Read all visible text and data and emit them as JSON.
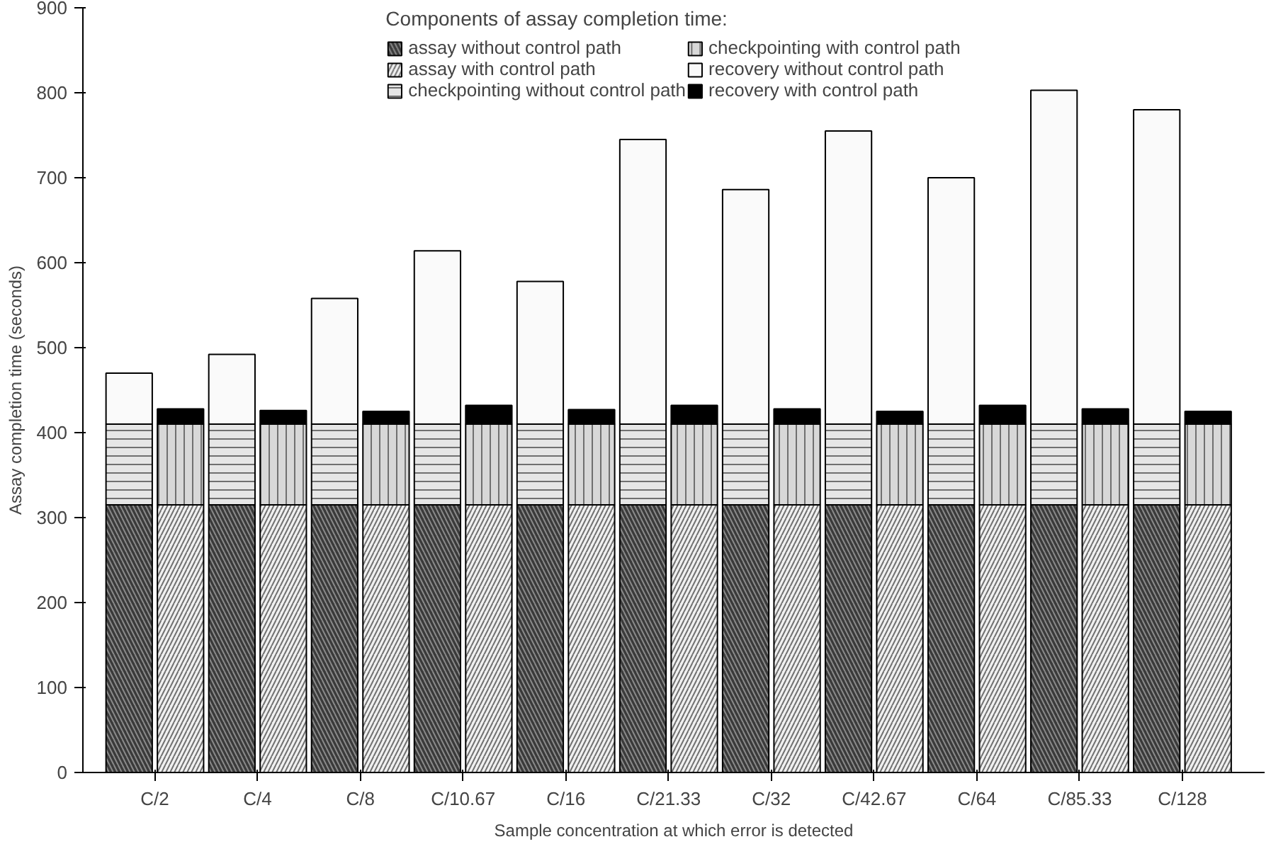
{
  "chart_data": {
    "type": "bar",
    "stacked": true,
    "xlabel": "Sample concentration at which error is detected",
    "ylabel": "Assay completion time (seconds)",
    "legend_title": "Components of assay completion time:",
    "legend": "top",
    "grid": false,
    "categories": [
      "C/2",
      null,
      "C/4",
      null,
      "C/8",
      null,
      "C/10.67",
      null,
      "C/16",
      null,
      "C/21.33",
      null,
      "C/32",
      null,
      "C/42.67",
      null,
      "C/64",
      null,
      "C/85.33",
      null,
      "C/128",
      null
    ],
    "ylim": [
      0,
      900
    ],
    "yticks": [
      0,
      100,
      200,
      300,
      400,
      500,
      600,
      700,
      800,
      900
    ],
    "series": [
      {
        "name": "assay without control path",
        "color": "#3a3a3a",
        "values": [
          315,
          null,
          315,
          null,
          315,
          null,
          315,
          null,
          315,
          null,
          315,
          null,
          315,
          null,
          315,
          null,
          315,
          null,
          315,
          null,
          315,
          null
        ]
      },
      {
        "name": "checkpointing without control path",
        "color": "#e6e6e6",
        "values": [
          95,
          null,
          95,
          null,
          95,
          null,
          95,
          null,
          95,
          null,
          95,
          null,
          95,
          null,
          95,
          null,
          95,
          null,
          95,
          null,
          95,
          null
        ]
      },
      {
        "name": "recovery without control path",
        "color": "#fafafa",
        "values": [
          60,
          null,
          82,
          null,
          148,
          null,
          204,
          null,
          168,
          null,
          335,
          null,
          276,
          null,
          345,
          null,
          290,
          null,
          393,
          null,
          370,
          null
        ]
      },
      {
        "name": "assay with control path",
        "color": "#f0f0f0",
        "values": [
          null,
          315,
          null,
          315,
          null,
          315,
          null,
          315,
          null,
          315,
          null,
          315,
          null,
          315,
          null,
          315,
          null,
          315,
          null,
          315,
          null,
          315
        ]
      },
      {
        "name": "checkpointing with control path",
        "color": "#d8d8d8",
        "values": [
          null,
          95,
          null,
          95,
          null,
          95,
          null,
          95,
          null,
          95,
          null,
          95,
          null,
          95,
          null,
          95,
          null,
          95,
          null,
          95,
          null,
          95
        ]
      },
      {
        "name": "recovery with control path",
        "color": "#000000",
        "values": [
          null,
          18,
          null,
          16,
          null,
          15,
          null,
          22,
          null,
          17,
          null,
          22,
          null,
          18,
          null,
          15,
          null,
          22,
          null,
          18,
          null,
          15
        ]
      }
    ]
  }
}
